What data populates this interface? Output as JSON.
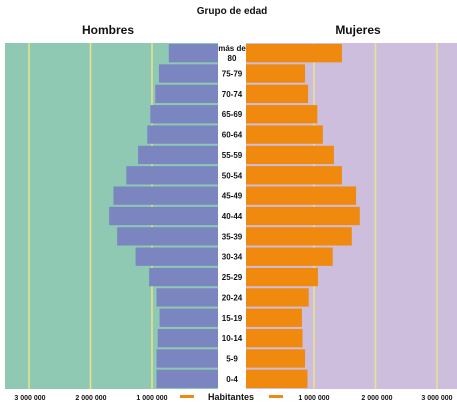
{
  "chart_data": {
    "type": "bar",
    "title_left": "Hombres",
    "title_center": "Grupo de edad",
    "title_right": "Mujeres",
    "categories": [
      "0-4",
      "5-9",
      "10-14",
      "15-19",
      "20-24",
      "25-29",
      "30-34",
      "35-39",
      "40-44",
      "45-49",
      "50-54",
      "55-59",
      "60-64",
      "65-69",
      "70-74",
      "75-79",
      "más de 80"
    ],
    "series": [
      {
        "name": "Hombres",
        "color": "#7b86c1",
        "values": [
          1000000,
          1000000,
          980000,
          950000,
          1000000,
          1120000,
          1340000,
          1640000,
          1770000,
          1700000,
          1490000,
          1300000,
          1150000,
          1100000,
          1020000,
          960000,
          800000
        ]
      },
      {
        "name": "Mujeres",
        "color": "#f08a0e",
        "values": [
          1000000,
          960000,
          920000,
          910000,
          1020000,
          1170000,
          1410000,
          1720000,
          1850000,
          1790000,
          1560000,
          1430000,
          1250000,
          1160000,
          1010000,
          960000,
          1560000
        ]
      }
    ],
    "xticks": [
      "3 000 000",
      "2 000 000",
      "1 000 000",
      "1 000 000",
      "2 000 000",
      "3 000 000"
    ],
    "xlabel": "Habitantes",
    "xlim": [
      0,
      2500000
    ],
    "background_left": "#8fc9b4",
    "background_right": "#cdbedd",
    "gridline_color": "#ece38a",
    "grid": true
  }
}
